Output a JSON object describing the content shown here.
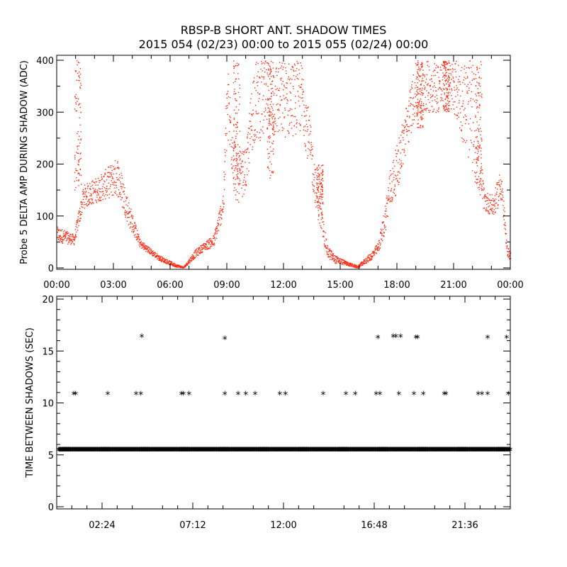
{
  "title_lines": [
    "RBSP-B SHORT ANT. SHADOW TIMES",
    "2015 054 (02/23) 00:00 to 2015 055 (02/24) 00:00"
  ],
  "colors": {
    "background": "#ffffff",
    "axes": "#000000",
    "amp_points": "#ff2a10",
    "interval_points": "#000000"
  },
  "chart_data": [
    {
      "type": "scatter",
      "panel": "top",
      "ylabel": "Probe 5 DELTA AMP DURING SHADOW (ADC)",
      "xlim": [
        0,
        24
      ],
      "ylim": [
        0,
        400
      ],
      "x_tick_labels": [
        "00:00",
        "03:00",
        "06:00",
        "09:00",
        "12:00",
        "15:00",
        "18:00",
        "21:00",
        "00:00"
      ],
      "x_tick_values": [
        0,
        3,
        6,
        9,
        12,
        15,
        18,
        21,
        24
      ],
      "y_ticks": [
        0,
        100,
        200,
        300,
        400
      ],
      "grid": false,
      "series_color": "#ff2a10",
      "envelope_hours": [
        0,
        0.9,
        1.4,
        2.3,
        3.2,
        3.8,
        4.4,
        5.4,
        6.2,
        6.7,
        7.3,
        7.8,
        8.3,
        8.8,
        9.0,
        9.5,
        10.0,
        10.4,
        11.0,
        12.0,
        13.0,
        13.8,
        14.3,
        14.7,
        15.4,
        15.9,
        16.6,
        17.0,
        17.3,
        17.6,
        18.0,
        19.0,
        20.0,
        21.0,
        22.0,
        22.6,
        23.1,
        23.5,
        23.8,
        24.0
      ],
      "envelope_low": [
        50,
        45,
        115,
        130,
        140,
        80,
        40,
        15,
        3,
        0,
        20,
        35,
        40,
        100,
        240,
        120,
        150,
        240,
        250,
        250,
        260,
        95,
        20,
        10,
        5,
        0,
        15,
        30,
        60,
        110,
        150,
        300,
        300,
        300,
        180,
        110,
        100,
        130,
        25,
        15
      ],
      "envelope_high": [
        80,
        65,
        160,
        180,
        215,
        130,
        55,
        25,
        10,
        3,
        35,
        50,
        65,
        150,
        400,
        220,
        230,
        400,
        400,
        400,
        400,
        160,
        45,
        25,
        12,
        5,
        30,
        50,
        110,
        190,
        240,
        400,
        400,
        400,
        400,
        150,
        140,
        200,
        45,
        30
      ],
      "bursts": [
        {
          "x": 1.1,
          "y_low": 150,
          "y_high": 400
        },
        {
          "x": 9.5,
          "y_low": 150,
          "y_high": 400
        },
        {
          "x": 11.3,
          "y_low": 170,
          "y_high": 400
        },
        {
          "x": 13.9,
          "y_low": 120,
          "y_high": 200
        },
        {
          "x": 19.2,
          "y_low": 270,
          "y_high": 400
        },
        {
          "x": 20.6,
          "y_low": 300,
          "y_high": 400
        },
        {
          "x": 22.3,
          "y_low": 150,
          "y_high": 400
        }
      ]
    },
    {
      "type": "scatter",
      "panel": "bottom",
      "ylabel": "TIME BETWEEN SHADOWS (SEC)",
      "xlim": [
        0,
        24
      ],
      "ylim": [
        0,
        20
      ],
      "x_tick_labels": [
        "02:24",
        "07:12",
        "12:00",
        "16:48",
        "21:36"
      ],
      "x_tick_values": [
        2.4,
        7.2,
        12.0,
        16.8,
        21.6
      ],
      "y_ticks": [
        0,
        5,
        10,
        15,
        20
      ],
      "grid": false,
      "marker": "*",
      "series_color": "#000000",
      "baseline": {
        "y": 5.4,
        "x_start": 0.1,
        "x_end": 24.0
      },
      "points": [
        {
          "x": 0.9,
          "y": 10.8
        },
        {
          "x": 1.0,
          "y": 10.8
        },
        {
          "x": 2.7,
          "y": 10.8
        },
        {
          "x": 4.2,
          "y": 10.8
        },
        {
          "x": 4.45,
          "y": 10.8
        },
        {
          "x": 4.5,
          "y": 16.3
        },
        {
          "x": 6.6,
          "y": 10.8
        },
        {
          "x": 6.7,
          "y": 10.8
        },
        {
          "x": 7.0,
          "y": 10.8
        },
        {
          "x": 8.9,
          "y": 16.1
        },
        {
          "x": 8.9,
          "y": 10.8
        },
        {
          "x": 9.6,
          "y": 10.8
        },
        {
          "x": 10.0,
          "y": 10.8
        },
        {
          "x": 10.5,
          "y": 10.8
        },
        {
          "x": 11.8,
          "y": 10.8
        },
        {
          "x": 12.1,
          "y": 10.8
        },
        {
          "x": 14.1,
          "y": 10.8
        },
        {
          "x": 15.3,
          "y": 10.8
        },
        {
          "x": 15.8,
          "y": 10.8
        },
        {
          "x": 16.9,
          "y": 10.8
        },
        {
          "x": 17.0,
          "y": 16.2
        },
        {
          "x": 17.1,
          "y": 10.8
        },
        {
          "x": 17.8,
          "y": 16.3
        },
        {
          "x": 17.95,
          "y": 16.3
        },
        {
          "x": 18.1,
          "y": 10.8
        },
        {
          "x": 18.2,
          "y": 16.3
        },
        {
          "x": 18.9,
          "y": 10.8
        },
        {
          "x": 19.0,
          "y": 16.2
        },
        {
          "x": 19.1,
          "y": 16.2
        },
        {
          "x": 19.4,
          "y": 10.8
        },
        {
          "x": 20.5,
          "y": 10.8
        },
        {
          "x": 20.6,
          "y": 10.8
        },
        {
          "x": 22.3,
          "y": 10.8
        },
        {
          "x": 22.5,
          "y": 10.8
        },
        {
          "x": 22.8,
          "y": 16.2
        },
        {
          "x": 22.8,
          "y": 10.8
        },
        {
          "x": 23.8,
          "y": 16.2
        },
        {
          "x": 23.9,
          "y": 10.8
        }
      ]
    }
  ]
}
